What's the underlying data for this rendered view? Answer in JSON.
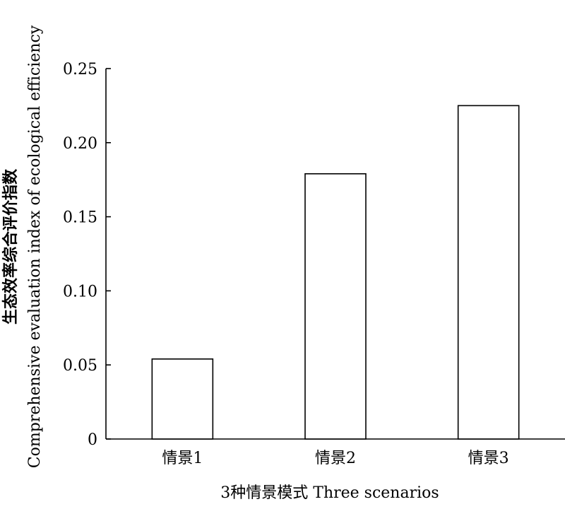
{
  "chart_data": {
    "type": "bar",
    "title": "",
    "categories": [
      "情景1",
      "情景2",
      "情景3"
    ],
    "values": [
      0.054,
      0.179,
      0.225
    ],
    "xlabel": "3种情景模式 Three scenarios",
    "ylabel_cn": "生态效率综合评价指数",
    "ylabel_en": "Comprehensive evaluation index of ecological efficiency",
    "ylim": [
      0,
      0.25
    ],
    "yticks": [
      0,
      0.05,
      0.1,
      0.15,
      0.2,
      0.25
    ],
    "ytick_labels": [
      "0",
      "0.05",
      "0.10",
      "0.15",
      "0.20",
      "0.25"
    ],
    "grid": false,
    "legend": "none",
    "bar_fill": "#ffffff",
    "bar_stroke": "#000000"
  }
}
